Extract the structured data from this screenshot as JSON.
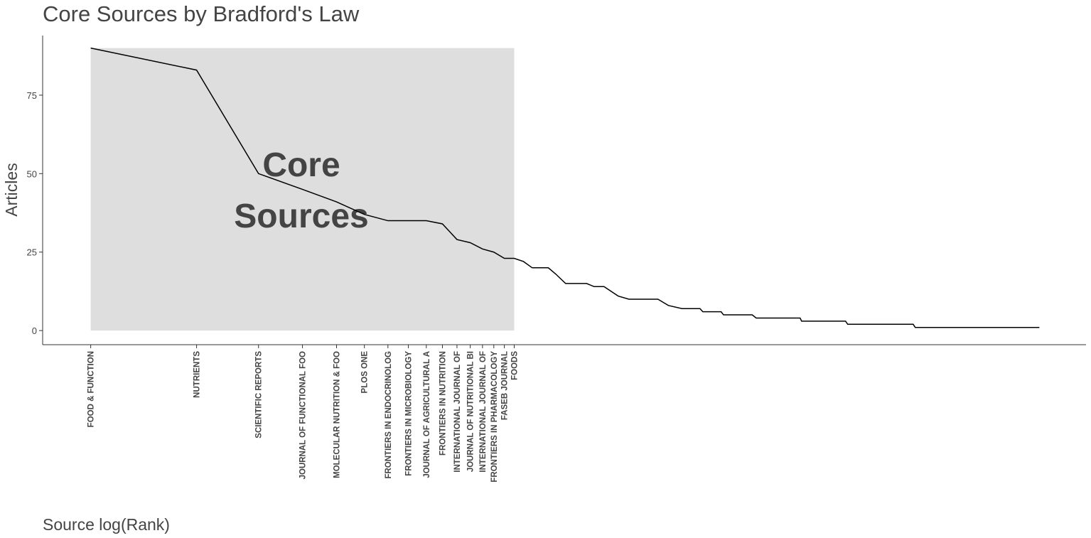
{
  "chart_data": {
    "type": "line",
    "title": "Core Sources by Bradford's Law",
    "x_label": "Source log(Rank)",
    "y_label": "Articles",
    "annotation": [
      "Core",
      "Sources"
    ],
    "x": [
      1,
      2,
      3,
      4,
      5,
      6,
      7,
      8,
      9,
      10,
      11,
      12,
      13,
      14,
      15,
      16,
      17,
      18,
      20,
      21,
      22.4,
      25.7,
      27,
      28.8,
      31.6,
      33.9,
      41,
      43.9,
      48,
      54,
      55,
      62,
      63,
      76,
      78,
      104,
      105,
      140,
      142,
      218,
      221,
      498
    ],
    "series": [
      {
        "name": "Articles",
        "color": "#000000",
        "values": [
          90,
          83,
          50,
          45,
          41,
          37,
          35,
          35,
          35,
          34,
          29,
          28,
          26,
          25,
          23,
          23,
          22,
          20,
          20,
          18,
          15,
          15,
          14,
          14,
          11,
          10,
          10,
          8,
          7,
          7,
          6,
          6,
          5,
          5,
          4,
          4,
          3,
          3,
          2,
          2,
          1,
          1
        ]
      }
    ],
    "xscale": "log",
    "xlim": [
      0.73,
      676
    ],
    "ylim": [
      -4.5,
      94
    ],
    "yticks": [
      0,
      25,
      50,
      75
    ],
    "xticks": [
      {
        "value": 1,
        "label": "FOOD & FUNCTION"
      },
      {
        "value": 2,
        "label": "NUTRIENTS"
      },
      {
        "value": 3,
        "label": "SCIENTIFIC REPORTS"
      },
      {
        "value": 4,
        "label": "JOURNAL OF FUNCTIONAL FOO"
      },
      {
        "value": 5,
        "label": "MOLECULAR NUTRITION & FOO"
      },
      {
        "value": 6,
        "label": "PLOS ONE"
      },
      {
        "value": 7,
        "label": "FRONTIERS IN ENDOCRINOLOG"
      },
      {
        "value": 8,
        "label": "FRONTIERS IN MICROBIOLOGY"
      },
      {
        "value": 9,
        "label": "JOURNAL OF AGRICULTURAL A"
      },
      {
        "value": 10,
        "label": "FRONTIERS IN NUTRITION"
      },
      {
        "value": 11,
        "label": "INTERNATIONAL JOURNAL OF"
      },
      {
        "value": 12,
        "label": "JOURNAL OF NUTRITIONAL BI"
      },
      {
        "value": 13,
        "label": "INTERNATIONAL JOURNAL OF"
      },
      {
        "value": 14,
        "label": "FRONTIERS IN PHARMACOLOGY"
      },
      {
        "value": 15,
        "label": "FASEB JOURNAL"
      },
      {
        "value": 16,
        "label": "FOODS"
      }
    ],
    "shade_color": "#dedede",
    "grid": false
  }
}
